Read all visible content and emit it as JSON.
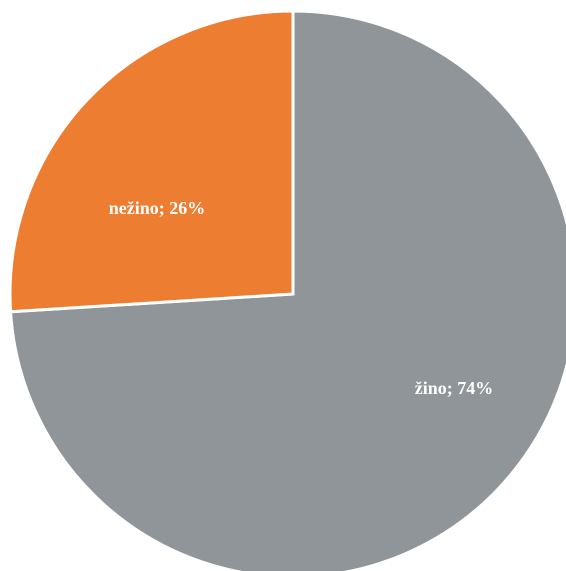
{
  "chart_data": {
    "type": "pie",
    "slices": [
      {
        "label": "žino",
        "value": 74,
        "color": "#8f9598"
      },
      {
        "label": "nežino",
        "value": 26,
        "color": "#ed7d31"
      }
    ],
    "data_labels": [
      "žino; 74%",
      "nežino; 26%"
    ],
    "start_angle_deg": 0,
    "direction": "clockwise",
    "legend": "none"
  }
}
